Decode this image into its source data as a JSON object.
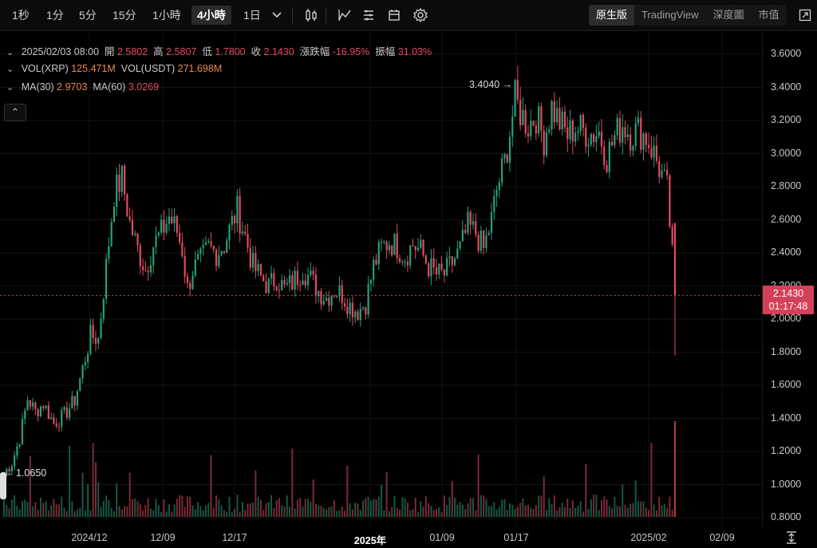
{
  "toolbar": {
    "timeframes": [
      "1秒",
      "1分",
      "5分",
      "15分",
      "1小時",
      "4小時",
      "1日"
    ],
    "active_timeframe": "4小時",
    "view_tabs": [
      "原生版",
      "TradingView",
      "深度圖",
      "市值"
    ],
    "active_view": "原生版"
  },
  "legend": {
    "ohlc": {
      "date": "2025/02/03 08:00",
      "open_label": "開",
      "open": "2.5802",
      "high_label": "高",
      "high": "2.5807",
      "low_label": "低",
      "low": "1.7800",
      "close_label": "收",
      "close": "2.1430",
      "change_label": "漲跌幅",
      "change": "-16.95%",
      "amplitude_label": "振幅",
      "amplitude": "31.03%"
    },
    "volume": {
      "xrp_label": "VOL(XRP)",
      "xrp": "125.471M",
      "usdt_label": "VOL(USDT)",
      "usdt": "271.698M"
    },
    "ma": {
      "ma30_label": "MA(30)",
      "ma30": "2.9703",
      "ma60_label": "MA(60)",
      "ma60": "3.0269"
    }
  },
  "price_axis": {
    "ticks": [
      "3.6000",
      "3.4000",
      "3.2000",
      "3.0000",
      "2.8000",
      "2.6000",
      "2.4000",
      "2.2000",
      "2.0000",
      "1.8000",
      "1.6000",
      "1.4000",
      "1.2000",
      "1.0000",
      "0.8000"
    ]
  },
  "time_axis": {
    "ticks": [
      "2024/12",
      "12/09",
      "12/17",
      "2025年",
      "01/09",
      "01/17",
      "2025/02",
      "02/09"
    ]
  },
  "current_price": {
    "price": "2.1430",
    "countdown": "01:17:48"
  },
  "annotations": {
    "high": "3.4040",
    "low": "1.0650"
  },
  "colors": {
    "up": "#26a17b",
    "down": "#e24b62",
    "background": "#000000",
    "price_tag": "#d4405a"
  },
  "chart_data": {
    "type": "candlestick",
    "ylim": [
      0.8,
      3.6
    ],
    "price_anchors": [
      [
        0,
        1.07
      ],
      [
        3,
        1.13
      ],
      [
        6,
        1.28
      ],
      [
        9,
        1.52
      ],
      [
        12,
        1.44
      ],
      [
        15,
        1.49
      ],
      [
        19,
        1.37
      ],
      [
        23,
        1.42
      ],
      [
        27,
        1.51
      ],
      [
        30,
        1.7
      ],
      [
        33,
        1.9
      ],
      [
        36,
        1.88
      ],
      [
        39,
        2.32
      ],
      [
        42,
        2.76
      ],
      [
        45,
        2.85
      ],
      [
        48,
        2.58
      ],
      [
        51,
        2.42
      ],
      [
        54,
        2.3
      ],
      [
        57,
        2.45
      ],
      [
        60,
        2.52
      ],
      [
        63,
        2.62
      ],
      [
        66,
        2.53
      ],
      [
        68,
        2.42
      ],
      [
        70,
        2.18
      ],
      [
        72,
        2.3
      ],
      [
        75,
        2.35
      ],
      [
        78,
        2.43
      ],
      [
        81,
        2.4
      ],
      [
        84,
        2.45
      ],
      [
        87,
        2.58
      ],
      [
        89,
        2.66
      ],
      [
        92,
        2.5
      ],
      [
        95,
        2.32
      ],
      [
        98,
        2.25
      ],
      [
        101,
        2.2
      ],
      [
        104,
        2.25
      ],
      [
        107,
        2.18
      ],
      [
        110,
        2.22
      ],
      [
        114,
        2.3
      ],
      [
        117,
        2.24
      ],
      [
        120,
        2.17
      ],
      [
        123,
        2.13
      ],
      [
        126,
        2.18
      ],
      [
        129,
        2.15
      ],
      [
        132,
        2.08
      ],
      [
        135,
        2.05
      ],
      [
        138,
        2.1
      ],
      [
        141,
        2.32
      ],
      [
        144,
        2.43
      ],
      [
        147,
        2.47
      ],
      [
        150,
        2.44
      ],
      [
        153,
        2.38
      ],
      [
        156,
        2.45
      ],
      [
        159,
        2.41
      ],
      [
        162,
        2.32
      ],
      [
        165,
        2.27
      ],
      [
        168,
        2.27
      ],
      [
        171,
        2.34
      ],
      [
        174,
        2.42
      ],
      [
        177,
        2.56
      ],
      [
        180,
        2.52
      ],
      [
        183,
        2.42
      ],
      [
        186,
        2.6
      ],
      [
        188,
        2.78
      ],
      [
        191,
        2.95
      ],
      [
        193,
        3.13
      ],
      [
        195,
        3.33
      ],
      [
        197,
        3.25
      ],
      [
        200,
        3.17
      ],
      [
        203,
        3.23
      ],
      [
        206,
        3.09
      ],
      [
        209,
        3.28
      ],
      [
        212,
        3.19
      ],
      [
        215,
        3.11
      ],
      [
        218,
        3.16
      ],
      [
        221,
        3.14
      ],
      [
        224,
        3.12
      ],
      [
        227,
        3.13
      ],
      [
        230,
        2.98
      ],
      [
        233,
        3.1
      ],
      [
        236,
        3.18
      ],
      [
        239,
        3.12
      ],
      [
        242,
        3.14
      ],
      [
        245,
        3.1
      ],
      [
        248,
        3.0
      ],
      [
        251,
        2.87
      ],
      [
        253,
        2.78
      ],
      [
        254,
        2.58
      ],
      [
        255,
        2.45
      ]
    ],
    "last_candle": {
      "open": 2.5802,
      "high": 2.5807,
      "low": 1.78,
      "close": 2.143
    },
    "high_point": 3.404,
    "low_point": 1.065
  }
}
